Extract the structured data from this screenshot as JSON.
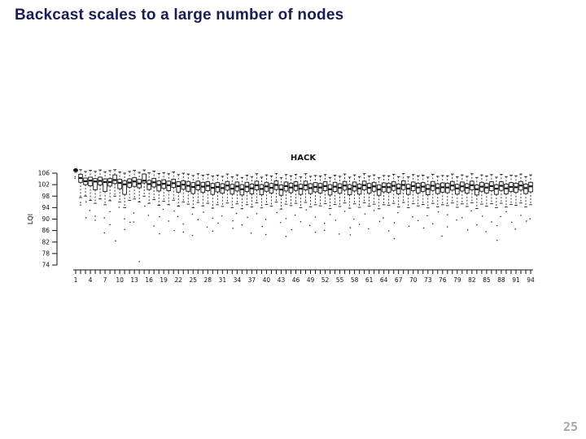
{
  "slide": {
    "title": "Backcast scales to a large number of nodes",
    "page_number": "25",
    "title_color": "#1b1b56",
    "page_number_color": "#a8a8a8"
  },
  "chart_data": {
    "type": "boxplot",
    "title": "HACK",
    "xlabel": "",
    "ylabel": "LQI",
    "ylim": [
      74,
      108
    ],
    "yticks": [
      74,
      78,
      82,
      86,
      90,
      94,
      98,
      102,
      106
    ],
    "x_count": 94,
    "xtick_labels": [
      "1",
      "4",
      "7",
      "10",
      "13",
      "16",
      "19",
      "22",
      "25",
      "28",
      "31",
      "34",
      "37",
      "40",
      "43",
      "46",
      "49",
      "52",
      "55",
      "58",
      "61",
      "64",
      "67",
      "70",
      "73",
      "76",
      "79",
      "82",
      "85",
      "88",
      "91",
      "94"
    ],
    "axis_color": "#111111",
    "box_fill": "#ffffff",
    "grid": false,
    "legend": null,
    "boxes": [
      [
        106.3,
        106.7,
        107.0,
        107.3,
        107.6
      ],
      [
        97.5,
        102.8,
        104.3,
        105.6,
        107.2
      ],
      [
        98.0,
        102.0,
        103.2,
        104.3,
        106.6
      ],
      [
        96.5,
        101.6,
        103.4,
        104.6,
        107.0
      ],
      [
        95.5,
        100.2,
        103.1,
        104.1,
        106.6
      ],
      [
        97.0,
        101.9,
        103.3,
        104.6,
        107.1
      ],
      [
        95.0,
        99.6,
        102.9,
        104.0,
        106.5
      ],
      [
        96.4,
        101.5,
        102.9,
        104.1,
        106.9
      ],
      [
        98.0,
        102.4,
        103.6,
        105.4,
        107.2
      ],
      [
        96.0,
        100.6,
        102.6,
        103.9,
        106.4
      ],
      [
        94.0,
        98.6,
        102.1,
        103.4,
        106.0
      ],
      [
        96.5,
        101.1,
        102.7,
        104.0,
        106.6
      ],
      [
        97.0,
        101.4,
        103.1,
        104.5,
        107.0
      ],
      [
        96.0,
        100.9,
        102.4,
        103.8,
        106.3
      ],
      [
        98.0,
        102.6,
        103.4,
        105.7,
        107.1
      ],
      [
        95.5,
        100.3,
        102.2,
        103.5,
        106.1
      ],
      [
        96.8,
        101.2,
        102.8,
        104.2,
        106.7
      ],
      [
        94.8,
        99.8,
        101.9,
        103.3,
        105.9
      ],
      [
        96.2,
        100.7,
        102.3,
        103.7,
        106.2
      ],
      [
        95.0,
        99.9,
        101.8,
        103.2,
        105.8
      ],
      [
        96.6,
        101.0,
        102.5,
        103.9,
        106.4
      ],
      [
        94.5,
        99.4,
        101.5,
        103.0,
        105.5
      ],
      [
        96.0,
        100.4,
        102.0,
        103.4,
        106.0
      ],
      [
        95.2,
        99.7,
        101.6,
        103.1,
        105.7
      ],
      [
        94.0,
        98.9,
        101.2,
        102.7,
        105.2
      ],
      [
        95.8,
        100.2,
        101.8,
        103.2,
        105.8
      ],
      [
        94.6,
        99.3,
        101.3,
        102.8,
        105.3
      ],
      [
        95.5,
        99.9,
        101.6,
        103.0,
        105.6
      ],
      [
        93.8,
        98.6,
        100.9,
        102.4,
        105.0
      ],
      [
        95.0,
        99.5,
        101.2,
        102.7,
        105.3
      ],
      [
        94.4,
        99.0,
        100.8,
        102.3,
        104.9
      ],
      [
        95.6,
        100.1,
        101.7,
        103.1,
        105.7
      ],
      [
        94.0,
        98.7,
        100.6,
        102.1,
        104.7
      ],
      [
        95.3,
        99.8,
        101.4,
        102.9,
        105.4
      ],
      [
        93.6,
        98.4,
        100.4,
        102.0,
        104.5
      ],
      [
        95.0,
        99.6,
        101.3,
        102.8,
        105.3
      ],
      [
        94.2,
        98.8,
        100.7,
        102.2,
        104.8
      ],
      [
        95.7,
        100.2,
        101.8,
        103.2,
        105.8
      ],
      [
        93.9,
        98.5,
        100.5,
        102.0,
        104.6
      ],
      [
        95.1,
        99.7,
        101.4,
        102.8,
        105.4
      ],
      [
        94.5,
        99.1,
        100.9,
        102.4,
        105.0
      ],
      [
        95.9,
        100.3,
        101.9,
        103.3,
        105.9
      ],
      [
        93.5,
        98.3,
        100.3,
        101.9,
        104.4
      ],
      [
        95.2,
        99.8,
        101.5,
        102.9,
        105.5
      ],
      [
        94.7,
        99.2,
        101.0,
        102.5,
        105.1
      ],
      [
        95.5,
        100.0,
        101.6,
        103.0,
        105.6
      ],
      [
        94.0,
        98.6,
        100.6,
        102.1,
        104.7
      ],
      [
        95.8,
        100.2,
        101.8,
        103.2,
        105.8
      ],
      [
        94.3,
        98.9,
        100.8,
        102.3,
        104.9
      ],
      [
        95.0,
        99.5,
        101.2,
        102.7,
        105.2
      ],
      [
        94.6,
        99.1,
        101.0,
        102.4,
        105.0
      ],
      [
        95.4,
        99.9,
        101.5,
        103.0,
        105.5
      ],
      [
        93.7,
        98.4,
        100.4,
        102.0,
        104.5
      ],
      [
        95.1,
        99.6,
        101.3,
        102.8,
        105.3
      ],
      [
        94.4,
        99.0,
        100.9,
        102.3,
        104.9
      ],
      [
        95.6,
        100.1,
        101.7,
        103.1,
        105.7
      ],
      [
        93.8,
        98.5,
        100.5,
        102.0,
        104.6
      ],
      [
        95.3,
        99.8,
        101.4,
        102.9,
        105.4
      ],
      [
        94.1,
        98.7,
        100.7,
        102.2,
        104.8
      ],
      [
        95.7,
        100.2,
        101.8,
        103.2,
        105.8
      ],
      [
        94.5,
        99.0,
        100.9,
        102.4,
        105.0
      ],
      [
        95.2,
        99.7,
        101.4,
        102.8,
        105.4
      ],
      [
        93.6,
        98.3,
        100.3,
        101.9,
        104.4
      ],
      [
        95.0,
        99.5,
        101.2,
        102.6,
        105.2
      ],
      [
        94.8,
        99.3,
        101.1,
        102.5,
        105.1
      ],
      [
        95.5,
        100.0,
        101.6,
        103.0,
        105.6
      ],
      [
        94.2,
        98.8,
        100.7,
        102.2,
        104.8
      ],
      [
        95.8,
        100.3,
        101.9,
        103.3,
        105.9
      ],
      [
        94.0,
        98.6,
        100.6,
        102.1,
        104.7
      ],
      [
        95.4,
        99.9,
        101.5,
        102.9,
        105.5
      ],
      [
        94.6,
        99.1,
        101.0,
        102.5,
        105.1
      ],
      [
        95.1,
        99.6,
        101.3,
        102.7,
        105.3
      ],
      [
        93.9,
        98.5,
        100.5,
        102.0,
        104.6
      ],
      [
        95.5,
        100.0,
        101.6,
        103.1,
        105.6
      ],
      [
        94.3,
        98.9,
        100.8,
        102.3,
        104.9
      ],
      [
        95.0,
        99.4,
        101.1,
        102.6,
        105.2
      ],
      [
        94.7,
        99.2,
        101.0,
        102.5,
        105.1
      ],
      [
        95.6,
        100.1,
        101.7,
        103.1,
        105.7
      ],
      [
        94.1,
        98.7,
        100.7,
        102.1,
        104.7
      ],
      [
        95.3,
        99.8,
        101.4,
        102.9,
        105.4
      ],
      [
        94.4,
        99.0,
        100.9,
        102.3,
        104.9
      ],
      [
        95.7,
        100.2,
        101.8,
        103.2,
        105.8
      ],
      [
        93.7,
        98.4,
        100.4,
        101.9,
        104.5
      ],
      [
        95.2,
        99.7,
        101.3,
        102.8,
        105.4
      ],
      [
        94.5,
        99.1,
        101.0,
        102.4,
        105.0
      ],
      [
        95.4,
        99.9,
        101.5,
        103.0,
        105.5
      ],
      [
        94.0,
        98.6,
        100.6,
        102.0,
        104.6
      ],
      [
        95.5,
        100.0,
        101.6,
        103.0,
        105.6
      ],
      [
        94.2,
        98.8,
        100.7,
        102.2,
        104.8
      ],
      [
        95.1,
        99.6,
        101.2,
        102.7,
        105.3
      ],
      [
        94.8,
        99.3,
        101.1,
        102.5,
        105.1
      ],
      [
        95.6,
        100.1,
        101.7,
        103.1,
        105.7
      ],
      [
        94.3,
        98.9,
        100.8,
        102.2,
        104.8
      ],
      [
        95.0,
        99.5,
        101.4,
        102.8,
        105.4
      ]
    ],
    "outliers": [
      [
        104.8,
        104.2
      ],
      [
        95.8,
        94.9
      ],
      [
        96.0,
        90.5
      ],
      [
        93.0
      ],
      [
        91.0,
        89.6
      ],
      [],
      [
        90.4,
        85.2
      ],
      [
        92.6,
        88.1
      ],
      [
        82.4
      ],
      [
        94.1
      ],
      [
        90.1,
        86.4
      ],
      [
        88.9
      ],
      [
        92.1,
        89.0
      ],
      [
        75.2
      ],
      [
        94.5
      ],
      [
        91.3
      ],
      [
        87.6
      ],
      [
        90.8,
        84.9
      ],
      [
        93.4
      ],
      [
        89.3
      ],
      [
        92.8,
        86.0
      ],
      [
        90.9
      ],
      [
        88.3,
        85.5
      ],
      [],
      [
        91.7,
        84.3
      ],
      [
        89.8
      ],
      [
        92.4
      ],
      [
        87.2
      ],
      [
        90.3,
        85.8
      ],
      [
        88.6
      ],
      [
        91.1
      ],
      [],
      [
        89.4,
        86.8
      ],
      [
        92.0
      ],
      [
        88.0
      ],
      [
        90.6
      ],
      [
        85.1
      ],
      [
        91.9
      ],
      [
        87.4
      ],
      [
        89.9,
        84.6
      ],
      [],
      [
        92.3
      ],
      [
        88.8
      ],
      [
        90.2,
        84.0
      ],
      [
        86.3
      ],
      [
        91.4
      ],
      [
        89.1
      ],
      [
        93.2
      ],
      [
        87.8
      ],
      [
        90.7,
        85.4
      ],
      [],
      [
        88.5,
        86.1
      ],
      [
        91.6
      ],
      [
        89.6
      ],
      [
        84.8
      ],
      [
        92.7
      ],
      [
        87.0,
        84.5
      ],
      [
        90.0
      ],
      [
        88.2
      ],
      [
        91.8
      ],
      [
        86.6
      ],
      [
        93.0
      ],
      [
        89.2
      ],
      [
        90.4
      ],
      [
        85.9
      ],
      [
        88.7,
        83.2
      ],
      [
        92.2
      ],
      [],
      [
        87.5
      ],
      [
        90.8
      ],
      [
        89.5
      ],
      [
        86.9
      ],
      [
        91.2
      ],
      [
        88.4
      ],
      [
        92.5
      ],
      [
        84.1
      ],
      [
        91.5,
        87.3
      ],
      [],
      [
        89.7
      ],
      [
        90.5
      ],
      [
        86.2
      ],
      [
        92.9
      ],
      [
        88.0
      ],
      [
        91.0
      ],
      [
        85.6
      ],
      [
        89.0
      ],
      [
        87.7,
        82.6
      ],
      [
        90.9
      ],
      [
        92.6
      ],
      [
        88.9
      ],
      [
        86.5
      ],
      [
        91.3
      ],
      [
        89.3
      ],
      [
        90.1
      ]
    ]
  }
}
